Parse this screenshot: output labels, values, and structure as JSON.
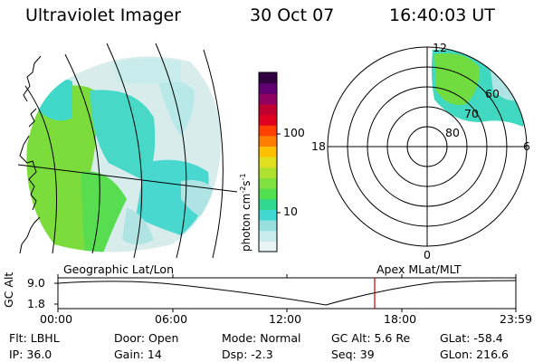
{
  "header": {
    "title": "Ultraviolet Imager",
    "date": "30 Oct 07",
    "time": "16:40:03 UT"
  },
  "colorbar": {
    "unit_label": "photon cm",
    "unit_exp1": "-2",
    "unit_mid": "s",
    "unit_exp2": "-1",
    "tick_100": "100",
    "tick_10": "10",
    "colors": [
      "#e8f4f4",
      "#c8ecec",
      "#98e0e0",
      "#40d8d0",
      "#30d890",
      "#50e050",
      "#80e040",
      "#b0e030",
      "#e0e020",
      "#ffc000",
      "#ff8000",
      "#ff4000",
      "#e00020",
      "#c00030",
      "#900060",
      "#600070",
      "#300040"
    ]
  },
  "polar_plot": {
    "labels": {
      "top": "12",
      "left": "18",
      "right": "6",
      "bottom": "0"
    },
    "lat_labels": {
      "l60": "60",
      "l70": "70",
      "l80": "80"
    }
  },
  "timeline": {
    "left_label": "Geographic Lat/Lon",
    "right_label": "Apex MLat/MLT",
    "axis_label": "GC Alt",
    "y_top": "9.0",
    "y_bottom": "1.8",
    "x_ticks": [
      "00:00",
      "06:00",
      "12:00",
      "18:00",
      "23:59"
    ],
    "marker_color": "#cc0000"
  },
  "info": {
    "filter": "Flt: LBHL",
    "ip": "IP: 36.0",
    "door": "Door: Open",
    "gain": "Gain: 14",
    "mode": "Mode: Normal",
    "dsp": "Dsp:   -2.3",
    "gc_alt": "GC Alt: 5.6 Re",
    "seq": "Seq: 39",
    "glat": "GLat: -58.4",
    "glon": "GLon: 216.6"
  }
}
